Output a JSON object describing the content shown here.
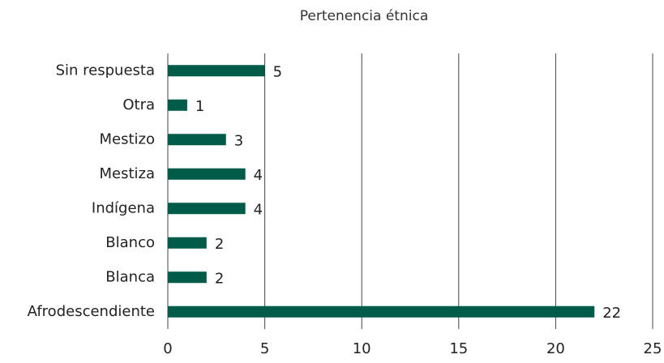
{
  "chart_data": {
    "type": "bar",
    "orientation": "horizontal",
    "title": "Pertenencia étnica",
    "categories": [
      "Sin respuesta",
      "Otra",
      "Mestizo",
      "Mestiza",
      "Indígena",
      "Blanco",
      "Blanca",
      "Afrodescendiente"
    ],
    "values": [
      5,
      1,
      3,
      4,
      4,
      2,
      2,
      22
    ],
    "color": "#005c48",
    "xlim": [
      0,
      25
    ],
    "xticks": [
      0,
      5,
      10,
      15,
      20,
      25
    ],
    "grid": true
  }
}
